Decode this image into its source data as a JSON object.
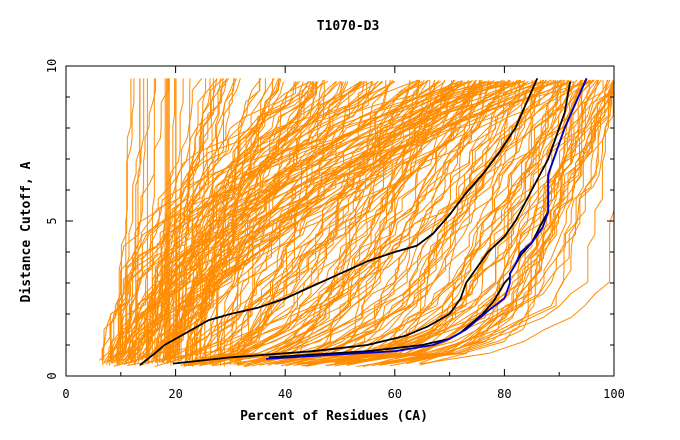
{
  "chart_data": {
    "type": "line",
    "title": "T1070-D3",
    "xlabel": "Percent of Residues (CA)",
    "ylabel": "Distance Cutoff, A",
    "xlim": [
      0,
      100
    ],
    "ylim": [
      0,
      10
    ],
    "xticks": [
      0,
      20,
      40,
      60,
      80,
      100
    ],
    "yticks": [
      0,
      5,
      10
    ],
    "grid": false,
    "colors": {
      "bulk": "#ff8c00",
      "highlight": "#000000",
      "best": "#0000cd",
      "axes": "#000000"
    },
    "series": [
      {
        "role": "highlight",
        "x": [
          19.5,
          30,
          45,
          55,
          62,
          66,
          70,
          72,
          73,
          75,
          77,
          80,
          82,
          85,
          88,
          91,
          92
        ],
        "y": [
          0.4,
          0.6,
          0.8,
          1.0,
          1.3,
          1.6,
          2.0,
          2.5,
          3.0,
          3.5,
          4.0,
          4.5,
          5.0,
          6.0,
          7.0,
          8.5,
          9.5
        ]
      },
      {
        "role": "highlight",
        "x": [
          13.5,
          16,
          18,
          22,
          26,
          30,
          35,
          40,
          45,
          50,
          55,
          60,
          64,
          67,
          70,
          73,
          76,
          79,
          82,
          84,
          86
        ],
        "y": [
          0.35,
          0.7,
          1.0,
          1.4,
          1.8,
          2.0,
          2.2,
          2.5,
          2.9,
          3.3,
          3.7,
          4.0,
          4.2,
          4.6,
          5.2,
          5.9,
          6.5,
          7.2,
          8.0,
          8.8,
          9.6
        ]
      },
      {
        "role": "highlight",
        "x": [
          37,
          55,
          65,
          70,
          72,
          74,
          76,
          78,
          80,
          81,
          81,
          82,
          83,
          85,
          87,
          88,
          88,
          89,
          91,
          93,
          95
        ],
        "y": [
          0.6,
          0.8,
          1.0,
          1.2,
          1.4,
          1.7,
          2.0,
          2.4,
          3.0,
          3.2,
          3.3,
          3.6,
          3.9,
          4.3,
          5.0,
          5.3,
          6.5,
          7.0,
          8.0,
          8.8,
          9.6
        ]
      },
      {
        "role": "best",
        "x": [
          36.5,
          50,
          60,
          67,
          70,
          73,
          75,
          77,
          80,
          81,
          81,
          82,
          83,
          85,
          87,
          88,
          88,
          89,
          91,
          93,
          95
        ],
        "y": [
          0.55,
          0.7,
          0.8,
          1.0,
          1.2,
          1.5,
          1.8,
          2.1,
          2.5,
          3.0,
          3.3,
          3.6,
          4.0,
          4.3,
          4.8,
          5.3,
          6.5,
          7.0,
          8.0,
          8.8,
          9.6
        ]
      }
    ]
  }
}
